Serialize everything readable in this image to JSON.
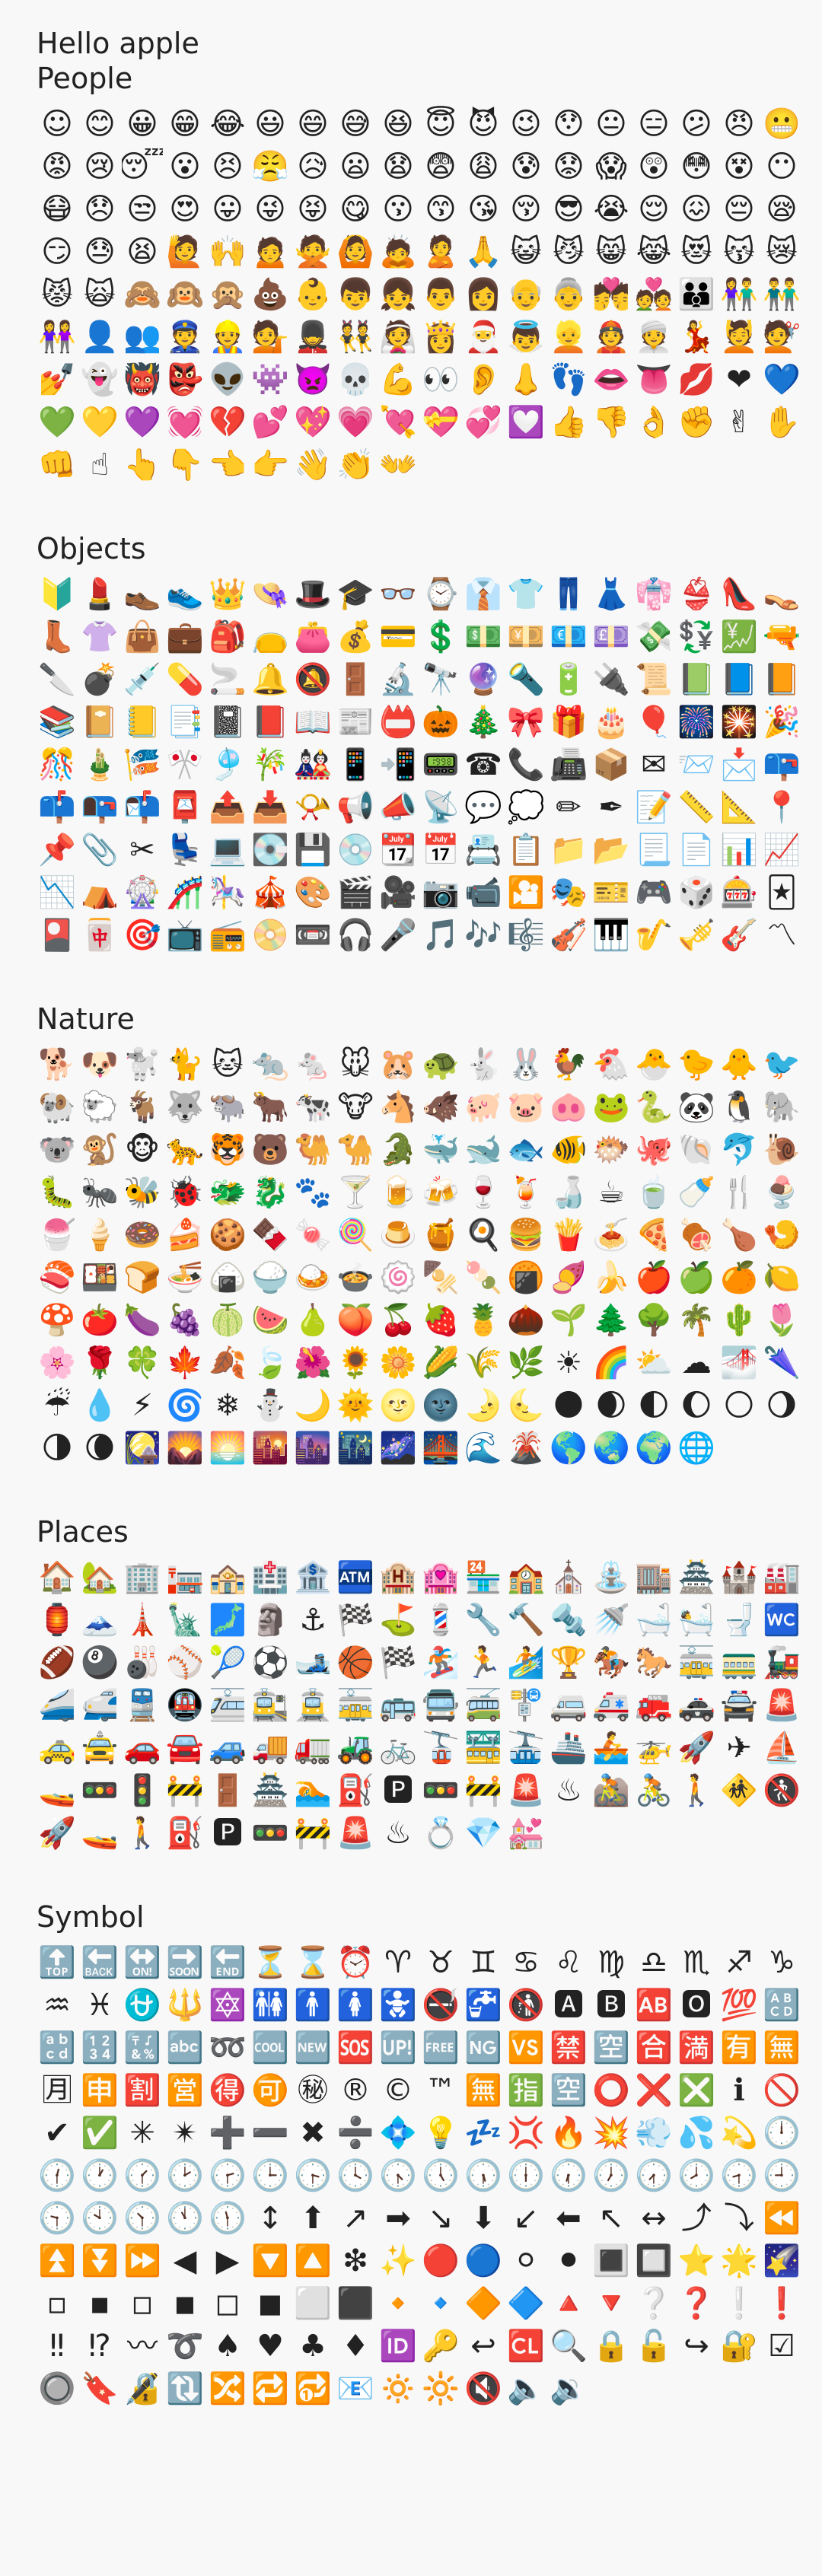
{
  "app": {
    "title": "Hello apple"
  },
  "sections": [
    {
      "id": "people",
      "title": "People",
      "emoji": [
        "☺",
        "😊",
        "😀",
        "😁",
        "😂",
        "😃",
        "😄",
        "😅",
        "😆",
        "😇",
        "😈",
        "😉",
        "😯",
        "😐",
        "😑",
        "😕",
        "😠",
        "😬",
        "😡",
        "😢",
        "😴",
        "😮",
        "😣",
        "😤",
        "😥",
        "😦",
        "😧",
        "😨",
        "😩",
        "😰",
        "😟",
        "😱",
        "😲",
        "😳",
        "😵",
        "😶",
        "😷",
        "😞",
        "😒",
        "😍",
        "😛",
        "😜",
        "😝",
        "😋",
        "😗",
        "😙",
        "😘",
        "😚",
        "😎",
        "😭",
        "😌",
        "😖",
        "😔",
        "😪",
        "😏",
        "😓",
        "😫",
        "🙋",
        "🙌",
        "🙍",
        "🙅",
        "🙆",
        "🙇",
        "🙎",
        "🙏",
        "😺",
        "😼",
        "😸",
        "😹",
        "😻",
        "😽",
        "😿",
        "😾",
        "🙀",
        "🙈",
        "🙉",
        "🙊",
        "💩",
        "👶",
        "👦",
        "👧",
        "👨",
        "👩",
        "👴",
        "👵",
        "💏",
        "💑",
        "👪",
        "👫",
        "👬",
        "👭",
        "👤",
        "👥",
        "👮",
        "👷",
        "💁",
        "💂",
        "👯",
        "👰",
        "👸",
        "🎅",
        "👼",
        "👱",
        "👲",
        "👳",
        "💃",
        "💆",
        "💇",
        "💅",
        "👻",
        "👹",
        "👺",
        "👽",
        "👾",
        "👿",
        "💀",
        "💪",
        "👀",
        "👂",
        "👃",
        "👣",
        "👄",
        "👅",
        "💋",
        "❤",
        "💙",
        "💚",
        "💛",
        "💜",
        "💓",
        "💔",
        "💕",
        "💖",
        "💗",
        "💘",
        "💝",
        "💞",
        "💟",
        "👍",
        "👎",
        "👌",
        "✊",
        "✌",
        "✋",
        "👊",
        "☝",
        "👆",
        "👇",
        "👈",
        "👉",
        "👋",
        "👏",
        "👐"
      ]
    },
    {
      "id": "objects",
      "title": "Objects",
      "emoji": [
        "🔰",
        "💄",
        "👞",
        "👟",
        "👑",
        "👒",
        "🎩",
        "🎓",
        "👓",
        "⌚",
        "👔",
        "👕",
        "👖",
        "👗",
        "👘",
        "👙",
        "👠",
        "👡",
        "👢",
        "👚",
        "👜",
        "💼",
        "🎒",
        "👝",
        "👛",
        "💰",
        "💳",
        "💲",
        "💵",
        "💴",
        "💶",
        "💷",
        "💸",
        "💱",
        "💹",
        "🔫",
        "🔪",
        "💣",
        "💉",
        "💊",
        "🚬",
        "🔔",
        "🔕",
        "🚪",
        "🔬",
        "🔭",
        "🔮",
        "🔦",
        "🔋",
        "🔌",
        "📜",
        "📗",
        "📘",
        "📙",
        "📚",
        "📔",
        "📒",
        "📑",
        "📓",
        "📕",
        "📖",
        "📰",
        "📛",
        "🎃",
        "🎄",
        "🎀",
        "🎁",
        "🎂",
        "🎈",
        "🎆",
        "🎇",
        "🎉",
        "🎊",
        "🎍",
        "🎏",
        "🎌",
        "🎐",
        "🎋",
        "🎎",
        "📱",
        "📲",
        "📟",
        "☎",
        "📞",
        "📠",
        "📦",
        "✉",
        "📨",
        "📩",
        "📪",
        "📫",
        "📭",
        "📬",
        "📮",
        "📤",
        "📥",
        "📯",
        "📢",
        "📣",
        "📡",
        "💬",
        "💭",
        "✏",
        "✒",
        "📝",
        "📏",
        "📐",
        "📍",
        "📌",
        "📎",
        "✂",
        "💺",
        "💻",
        "💽",
        "💾",
        "💿",
        "📆",
        "📅",
        "📇",
        "📋",
        "📁",
        "📂",
        "📃",
        "📄",
        "📊",
        "📈",
        "📉",
        "⛺",
        "🎡",
        "🎢",
        "🎠",
        "🎪",
        "🎨",
        "🎬",
        "🎥",
        "📷",
        "📹",
        "🎦",
        "🎭",
        "🎫",
        "🎮",
        "🎲",
        "🎰",
        "🃏",
        "🎴",
        "🀄",
        "🎯",
        "📺",
        "📻",
        "📀",
        "📼",
        "🎧",
        "🎤",
        "🎵",
        "🎶",
        "🎼",
        "🎻",
        "🎹",
        "🎷",
        "🎺",
        "🎸",
        "〽"
      ]
    },
    {
      "id": "nature",
      "title": "Nature",
      "emoji": [
        "🐕",
        "🐶",
        "🐩",
        "🐈",
        "🐱",
        "🐀",
        "🐁",
        "🐭",
        "🐹",
        "🐢",
        "🐇",
        "🐰",
        "🐓",
        "🐔",
        "🐣",
        "🐤",
        "🐥",
        "🐦",
        "🐏",
        "🐑",
        "🐐",
        "🐺",
        "🐃",
        "🐂",
        "🐄",
        "🐮",
        "🐴",
        "🐗",
        "🐖",
        "🐷",
        "🐽",
        "🐸",
        "🐍",
        "🐼",
        "🐧",
        "🐘",
        "🐨",
        "🐒",
        "🐵",
        "🐆",
        "🐯",
        "🐻",
        "🐫",
        "🐪",
        "🐊",
        "🐳",
        "🐋",
        "🐟",
        "🐠",
        "🐡",
        "🐙",
        "🐚",
        "🐬",
        "🐌",
        "🐛",
        "🐜",
        "🐝",
        "🐞",
        "🐲",
        "🐉",
        "🐾",
        "🍸",
        "🍺",
        "🍻",
        "🍷",
        "🍹",
        "🍶",
        "☕",
        "🍵",
        "🍼",
        "🍴",
        "🍨",
        "🍧",
        "🍦",
        "🍩",
        "🍰",
        "🍪",
        "🍫",
        "🍬",
        "🍭",
        "🍮",
        "🍯",
        "🍳",
        "🍔",
        "🍟",
        "🍝",
        "🍕",
        "🍖",
        "🍗",
        "🍤",
        "🍣",
        "🍱",
        "🍞",
        "🍜",
        "🍙",
        "🍚",
        "🍛",
        "🍲",
        "🍥",
        "🍢",
        "🍡",
        "🍘",
        "🍠",
        "🍌",
        "🍎",
        "🍏",
        "🍊",
        "🍋",
        "🍄",
        "🍅",
        "🍆",
        "🍇",
        "🍈",
        "🍉",
        "🍐",
        "🍑",
        "🍒",
        "🍓",
        "🍍",
        "🌰",
        "🌱",
        "🌲",
        "🌳",
        "🌴",
        "🌵",
        "🌷",
        "🌸",
        "🌹",
        "🍀",
        "🍁",
        "🍂",
        "🍃",
        "🌺",
        "🌻",
        "🌼",
        "🌽",
        "🌾",
        "🌿",
        "☀",
        "🌈",
        "⛅",
        "☁",
        "🌁",
        "🌂",
        "☔",
        "💧",
        "⚡",
        "🌀",
        "❄",
        "⛄",
        "🌙",
        "🌞",
        "🌝",
        "🌚",
        "🌛",
        "🌜",
        "🌑",
        "🌒",
        "🌓",
        "🌔",
        "🌕",
        "🌖",
        "🌗",
        "🌘",
        "🎑",
        "🌄",
        "🌅",
        "🌇",
        "🌆",
        "🌃",
        "🌌",
        "🌉",
        "🌊",
        "🌋",
        "🌎",
        "🌏",
        "🌍",
        "🌐"
      ]
    },
    {
      "id": "places",
      "title": "Places",
      "emoji": [
        "🏠",
        "🏡",
        "🏢",
        "🏣",
        "🏤",
        "🏥",
        "🏦",
        "🏧",
        "🏨",
        "🏩",
        "🏪",
        "🏫",
        "⛪",
        "⛲",
        "🏬",
        "🏯",
        "🏰",
        "🏭",
        "🏮",
        "🗻",
        "🗼",
        "🗽",
        "🗾",
        "🗿",
        "⚓",
        "🏁",
        "⛳",
        "💈",
        "🔧",
        "🔨",
        "🔩",
        "🚿",
        "🛁",
        "🛀",
        "🚽",
        "🚾",
        "🏈",
        "🎱",
        "🎳",
        "⚾",
        "🎾",
        "⚽",
        "🎿",
        "🏀",
        "🏁",
        "🏂",
        "🏃",
        "🏄",
        "🏆",
        "🏇",
        "🐎",
        "🚋",
        "🚃",
        "🚂",
        "🚄",
        "🚅",
        "🚆",
        "🚇",
        "🚈",
        "🚉",
        "🚊",
        "🚋",
        "🚌",
        "🚍",
        "🚎",
        "🚏",
        "🚐",
        "🚑",
        "🚒",
        "🚓",
        "🚔",
        "🚨",
        "🚕",
        "🚖",
        "🚗",
        "🚘",
        "🚙",
        "🚚",
        "🚛",
        "🚜",
        "🚲",
        "🚡",
        "🚟",
        "🚠",
        "🚢",
        "🚣",
        "🚁",
        "🚀",
        "✈",
        "⛵",
        "🚤",
        "🚥",
        "🚦",
        "🚧",
        "🚪",
        "🏯",
        "🏊",
        "⛽",
        "🅿",
        "🚥",
        "🚧",
        "🚨",
        "♨",
        "🚵",
        "🚴",
        "🚶",
        "🚸",
        "🚷",
        "🚀",
        "🚤",
        "🚶",
        "⛽",
        "🅿",
        "🚥",
        "🚧",
        "🚨",
        "♨",
        "💍",
        "💎",
        "💒"
      ]
    },
    {
      "id": "symbol",
      "title": "Symbol",
      "emoji": [
        "🔝",
        "🔙",
        "🔛",
        "🔜",
        "🔚",
        "⏳",
        "⌛",
        "⏰",
        "♈",
        "♉",
        "♊",
        "♋",
        "♌",
        "♍",
        "♎",
        "♏",
        "♐",
        "♑",
        "♒",
        "♓",
        "⛎",
        "🔱",
        "🔯",
        "🚻",
        "🚹",
        "🚺",
        "🚼",
        "🚭",
        "🚰",
        "🚯",
        "🅰",
        "🅱",
        "🆎",
        "🅾",
        "💯",
        "🔠",
        "🔡",
        "🔢",
        "🔣",
        "🔤",
        "➿",
        "🆒",
        "🆕",
        "🆘",
        "🆙",
        "🆓",
        "🆖",
        "🆚",
        "🈲",
        "🈳",
        "🈴",
        "🈵",
        "🈶",
        "🈚",
        "🈷",
        "🈸",
        "🈹",
        "🈺",
        "🉐",
        "🉑",
        "㊙",
        "®",
        "©",
        "™",
        "🈚",
        "🈯",
        "🈳",
        "⭕",
        "❌",
        "❎",
        "ℹ",
        "🚫",
        "✔",
        "✅",
        "✳",
        "✴",
        "➕",
        "➖",
        "✖",
        "➗",
        "💠",
        "💡",
        "💤",
        "💢",
        "🔥",
        "💥",
        "💨",
        "💦",
        "💫",
        "🕛",
        "🕧",
        "🕐",
        "🕜",
        "🕑",
        "🕝",
        "🕒",
        "🕞",
        "🕓",
        "🕟",
        "🕔",
        "🕠",
        "🕕",
        "🕡",
        "🕖",
        "🕢",
        "🕗",
        "🕣",
        "🕘",
        "🕤",
        "🕙",
        "🕥",
        "🕚",
        "🕦",
        "↕",
        "⬆",
        "↗",
        "➡",
        "↘",
        "⬇",
        "↙",
        "⬅",
        "↖",
        "↔",
        "⤴",
        "⤵",
        "⏪",
        "⏫",
        "⏬",
        "⏩",
        "◀",
        "▶",
        "🔽",
        "🔼",
        "❇",
        "✨",
        "🔴",
        "🔵",
        "⚪",
        "⚫",
        "🔳",
        "🔲",
        "⭐",
        "🌟",
        "🌠",
        "▫",
        "▪",
        "◽",
        "◾",
        "◻",
        "◼",
        "⬜",
        "⬛",
        "🔸",
        "🔹",
        "🔶",
        "🔷",
        "🔺",
        "🔻",
        "❔",
        "❓",
        "❕",
        "❗",
        "‼",
        "⁉",
        "〰",
        "➰",
        "♠",
        "♥",
        "♣",
        "♦",
        "🆔",
        "🔑",
        "↩",
        "🆑",
        "🔍",
        "🔒",
        "🔓",
        "↪",
        "🔐",
        "☑",
        "🔘",
        "🔖",
        "🔏",
        "🔃",
        "🔀",
        "🔁",
        "🔂",
        "📧",
        "🔅",
        "🔆",
        "🔇",
        "🔈",
        "🔉"
      ]
    }
  ]
}
